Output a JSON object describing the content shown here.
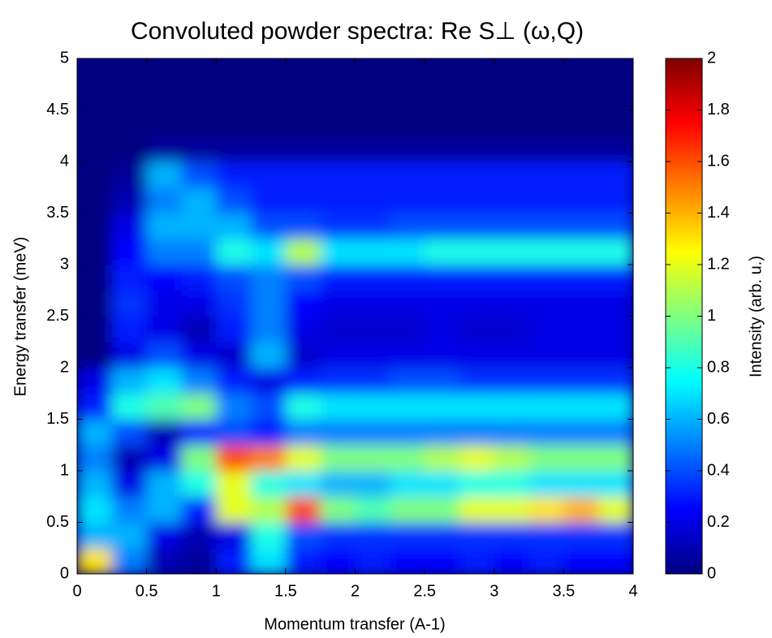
{
  "chart_data": {
    "type": "heatmap",
    "title": "Convoluted powder spectra: Re S⊥ (ω,Q)",
    "x_label": "Momentum transfer (A-1)",
    "y_label": "Energy transfer (meV)",
    "colorbar_label": "Intensity (arb. u.)",
    "colormap": "jet",
    "xlim": [
      0,
      4
    ],
    "ylim": [
      0,
      5
    ],
    "zlim": [
      0,
      2
    ],
    "xticks": [
      0,
      0.5,
      1,
      1.5,
      2,
      2.5,
      3,
      3.5,
      4
    ],
    "yticks": [
      0,
      0.5,
      1,
      1.5,
      2,
      2.5,
      3,
      3.5,
      4,
      4.5,
      5
    ],
    "zticks": [
      0,
      0.2,
      0.4,
      0.6,
      0.8,
      1,
      1.2,
      1.4,
      1.6,
      1.8,
      2
    ],
    "x": [
      0.125,
      0.375,
      0.625,
      0.875,
      1.125,
      1.375,
      1.625,
      1.875,
      2.125,
      2.375,
      2.625,
      2.875,
      3.125,
      3.375,
      3.625,
      3.875
    ],
    "y": [
      0.125,
      0.375,
      0.625,
      0.875,
      1.125,
      1.375,
      1.625,
      1.875,
      2.125,
      2.375,
      2.625,
      2.875,
      3.125,
      3.375,
      3.625,
      3.875,
      4.125,
      4.375,
      4.625,
      4.875
    ],
    "z": [
      [
        1.3,
        0.5,
        0.1,
        0.05,
        0.3,
        0.7,
        0.3,
        0.25,
        0.3,
        0.25,
        0.25,
        0.3,
        0.25,
        0.3,
        0.25,
        0.25
      ],
      [
        0.6,
        0.6,
        0.2,
        0.1,
        0.2,
        0.8,
        0.4,
        0.35,
        0.35,
        0.35,
        0.35,
        0.35,
        0.35,
        0.35,
        0.35,
        0.35
      ],
      [
        0.7,
        0.5,
        0.6,
        0.3,
        1.2,
        1.1,
        1.6,
        1.0,
        0.9,
        1.0,
        1.0,
        1.2,
        1.2,
        1.3,
        1.4,
        1.2
      ],
      [
        0.6,
        0.2,
        0.6,
        0.8,
        1.2,
        0.8,
        0.7,
        0.6,
        0.6,
        0.7,
        0.7,
        0.8,
        0.8,
        0.7,
        0.7,
        0.7
      ],
      [
        0.5,
        0.1,
        0.2,
        1.0,
        1.6,
        1.5,
        1.2,
        1.0,
        1.0,
        1.0,
        1.1,
        1.2,
        1.1,
        1.0,
        1.0,
        1.0
      ],
      [
        0.6,
        0.4,
        0.1,
        0.3,
        0.4,
        0.3,
        0.5,
        0.5,
        0.5,
        0.5,
        0.5,
        0.5,
        0.5,
        0.5,
        0.5,
        0.5
      ],
      [
        0.3,
        0.8,
        0.9,
        1.0,
        0.5,
        0.4,
        0.8,
        0.7,
        0.7,
        0.7,
        0.7,
        0.7,
        0.7,
        0.7,
        0.7,
        0.7
      ],
      [
        0.2,
        0.6,
        0.7,
        0.5,
        0.3,
        0.2,
        0.3,
        0.35,
        0.35,
        0.4,
        0.4,
        0.35,
        0.35,
        0.35,
        0.35,
        0.35
      ],
      [
        0,
        0.2,
        0.4,
        0.2,
        0.15,
        0.6,
        0.15,
        0.2,
        0.2,
        0.2,
        0.2,
        0.2,
        0.2,
        0.2,
        0.2,
        0.2
      ],
      [
        0,
        0.3,
        0.2,
        0.1,
        0.3,
        0.5,
        0.2,
        0.15,
        0.15,
        0.15,
        0.2,
        0.15,
        0.15,
        0.2,
        0.2,
        0.2
      ],
      [
        0,
        0.35,
        0.2,
        0.2,
        0.35,
        0.5,
        0.25,
        0.2,
        0.2,
        0.2,
        0.2,
        0.2,
        0.2,
        0.2,
        0.2,
        0.2
      ],
      [
        0,
        0.3,
        0.25,
        0.3,
        0.4,
        0.5,
        0.4,
        0.3,
        0.3,
        0.3,
        0.3,
        0.3,
        0.3,
        0.3,
        0.3,
        0.3
      ],
      [
        0,
        0.25,
        0.5,
        0.5,
        0.8,
        0.7,
        1.1,
        0.7,
        0.7,
        0.7,
        0.8,
        0.8,
        0.8,
        0.8,
        0.8,
        0.8
      ],
      [
        0,
        0.2,
        0.6,
        0.6,
        0.6,
        0.4,
        0.4,
        0.35,
        0.35,
        0.4,
        0.4,
        0.4,
        0.4,
        0.4,
        0.4,
        0.4
      ],
      [
        0,
        0.1,
        0.5,
        0.6,
        0.4,
        0.3,
        0.3,
        0.3,
        0.3,
        0.3,
        0.3,
        0.3,
        0.3,
        0.3,
        0.3,
        0.3
      ],
      [
        0,
        0.05,
        0.6,
        0.4,
        0.3,
        0.3,
        0.3,
        0.3,
        0.3,
        0.3,
        0.3,
        0.3,
        0.3,
        0.3,
        0.3,
        0.3
      ],
      [
        0,
        0,
        0.05,
        0.05,
        0.05,
        0.05,
        0.05,
        0.05,
        0.05,
        0.05,
        0.05,
        0.05,
        0.05,
        0.05,
        0.05,
        0.05
      ],
      [
        0,
        0,
        0,
        0,
        0,
        0,
        0,
        0,
        0,
        0,
        0,
        0,
        0,
        0,
        0,
        0
      ],
      [
        0,
        0,
        0,
        0,
        0,
        0,
        0,
        0,
        0,
        0,
        0,
        0,
        0,
        0,
        0,
        0
      ],
      [
        0,
        0,
        0,
        0,
        0,
        0,
        0,
        0,
        0,
        0,
        0,
        0,
        0,
        0,
        0,
        0
      ]
    ]
  }
}
